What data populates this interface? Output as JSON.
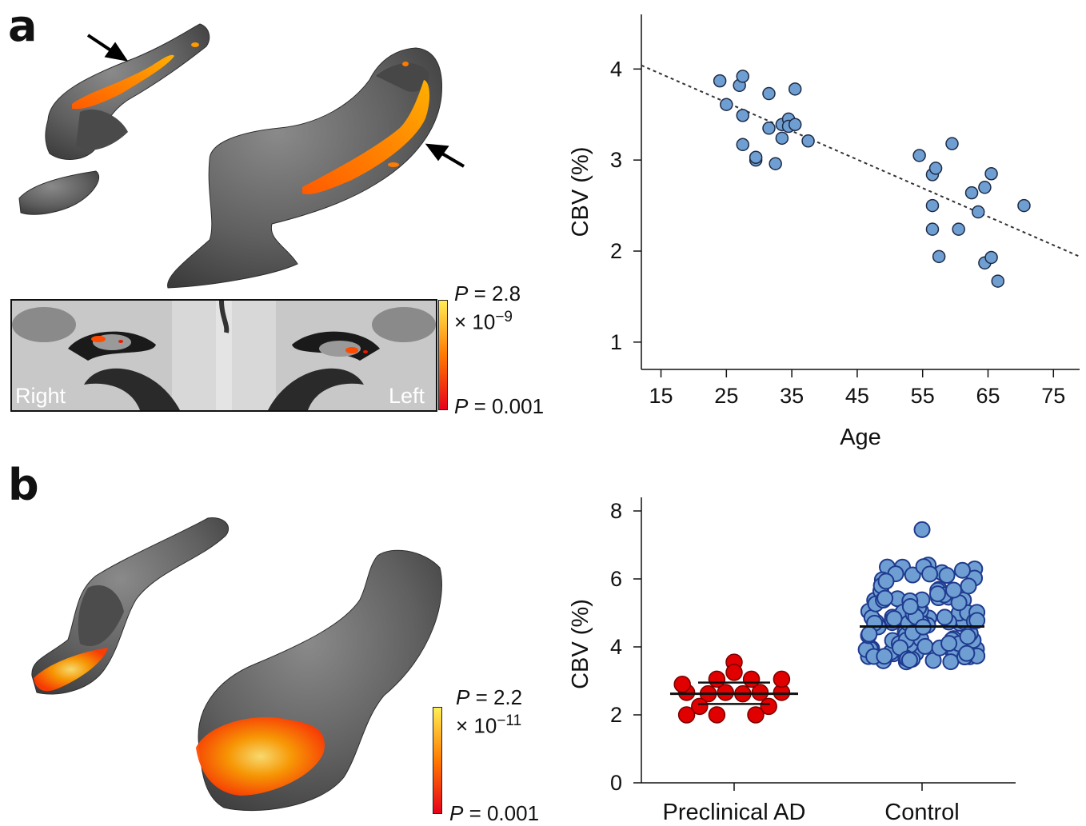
{
  "figure": {
    "panel_a_label": "a",
    "panel_b_label": "b"
  },
  "brain_slice": {
    "label_right": "Right",
    "label_left": "Left"
  },
  "colorbar_a": {
    "top_p": "P",
    "top_eq": " = 2.8",
    "top_exp_base": "× 10",
    "top_exp": "−9",
    "bottom_p": "P",
    "bottom_eq": " = 0.001",
    "gradient": [
      "#e8001a",
      "#ff7a00",
      "#ffee55"
    ]
  },
  "colorbar_b": {
    "top_p": "P",
    "top_eq": " = 2.2",
    "top_exp_base": "× 10",
    "top_exp": "−11",
    "bottom_p": "P",
    "bottom_eq": " = 0.001",
    "gradient": [
      "#e8001a",
      "#ff7a00",
      "#ffee55"
    ]
  },
  "chart_data": [
    {
      "type": "scatter",
      "panel": "a",
      "xlabel": "Age",
      "ylabel": "CBV (%)",
      "xlim": [
        12,
        79
      ],
      "ylim": [
        0.7,
        4.6
      ],
      "xticks": [
        15,
        25,
        35,
        45,
        55,
        65,
        75
      ],
      "yticks": [
        1,
        2,
        3,
        4
      ],
      "point_color": "#6f9fd2",
      "trendline": {
        "style": "dotted",
        "x": [
          12,
          79
        ],
        "y": [
          4.04,
          1.94
        ]
      },
      "points": [
        {
          "x": 24,
          "y": 3.87
        },
        {
          "x": 25,
          "y": 3.61
        },
        {
          "x": 27,
          "y": 3.82
        },
        {
          "x": 27.5,
          "y": 3.92
        },
        {
          "x": 27.5,
          "y": 3.49
        },
        {
          "x": 27.5,
          "y": 3.17
        },
        {
          "x": 29.5,
          "y": 3.0
        },
        {
          "x": 29.5,
          "y": 3.03
        },
        {
          "x": 31.5,
          "y": 3.73
        },
        {
          "x": 31.5,
          "y": 3.35
        },
        {
          "x": 32.5,
          "y": 2.96
        },
        {
          "x": 33.5,
          "y": 3.24
        },
        {
          "x": 33.5,
          "y": 3.39
        },
        {
          "x": 34.5,
          "y": 3.45
        },
        {
          "x": 34.5,
          "y": 3.37
        },
        {
          "x": 35.5,
          "y": 3.78
        },
        {
          "x": 35.5,
          "y": 3.39
        },
        {
          "x": 37.5,
          "y": 3.21
        },
        {
          "x": 54.5,
          "y": 3.05
        },
        {
          "x": 56.5,
          "y": 2.84
        },
        {
          "x": 57,
          "y": 2.91
        },
        {
          "x": 56.5,
          "y": 2.5
        },
        {
          "x": 56.5,
          "y": 2.24
        },
        {
          "x": 57.5,
          "y": 1.94
        },
        {
          "x": 59.5,
          "y": 3.18
        },
        {
          "x": 60.5,
          "y": 2.24
        },
        {
          "x": 62.5,
          "y": 2.64
        },
        {
          "x": 63.5,
          "y": 2.43
        },
        {
          "x": 64.5,
          "y": 2.7
        },
        {
          "x": 65.5,
          "y": 2.85
        },
        {
          "x": 64.5,
          "y": 1.87
        },
        {
          "x": 65.5,
          "y": 1.93
        },
        {
          "x": 66.5,
          "y": 1.67
        },
        {
          "x": 70.5,
          "y": 2.5
        }
      ]
    },
    {
      "type": "scatter",
      "panel": "b",
      "xlabel": "",
      "ylabel": "CBV (%)",
      "categories": [
        "Preclinical AD",
        "Control"
      ],
      "ylim": [
        0,
        8.4
      ],
      "yticks": [
        0,
        2,
        4,
        6,
        8
      ],
      "series": [
        {
          "name": "Preclinical AD",
          "color": "#e00000",
          "mean": 2.62,
          "sd": [
            2.32,
            2.95
          ],
          "points": [
            {
              "x": -0.22,
              "y": 2.66
            },
            {
              "x": -0.12,
              "y": 2.62
            },
            {
              "x": -0.04,
              "y": 2.66
            },
            {
              "x": 0.04,
              "y": 2.62
            },
            {
              "x": 0.12,
              "y": 2.66
            },
            {
              "x": 0.22,
              "y": 2.66
            },
            {
              "x": -0.24,
              "y": 2.9
            },
            {
              "x": 0.0,
              "y": 3.55
            },
            {
              "x": -0.08,
              "y": 3.05
            },
            {
              "x": 0.08,
              "y": 3.05
            },
            {
              "x": 0.22,
              "y": 3.05
            },
            {
              "x": -0.16,
              "y": 2.25
            },
            {
              "x": 0.16,
              "y": 2.25
            },
            {
              "x": -0.08,
              "y": 2.0
            },
            {
              "x": 0.1,
              "y": 2.0
            },
            {
              "x": -0.22,
              "y": 2.0
            },
            {
              "x": 0.0,
              "y": 3.25
            }
          ]
        },
        {
          "name": "Control",
          "color": "#6f9fd2",
          "edge": "#1f3a8f",
          "mean": 4.6,
          "range": [
            3.55,
            6.5
          ],
          "outlier": 7.45,
          "n": 115
        }
      ]
    }
  ]
}
